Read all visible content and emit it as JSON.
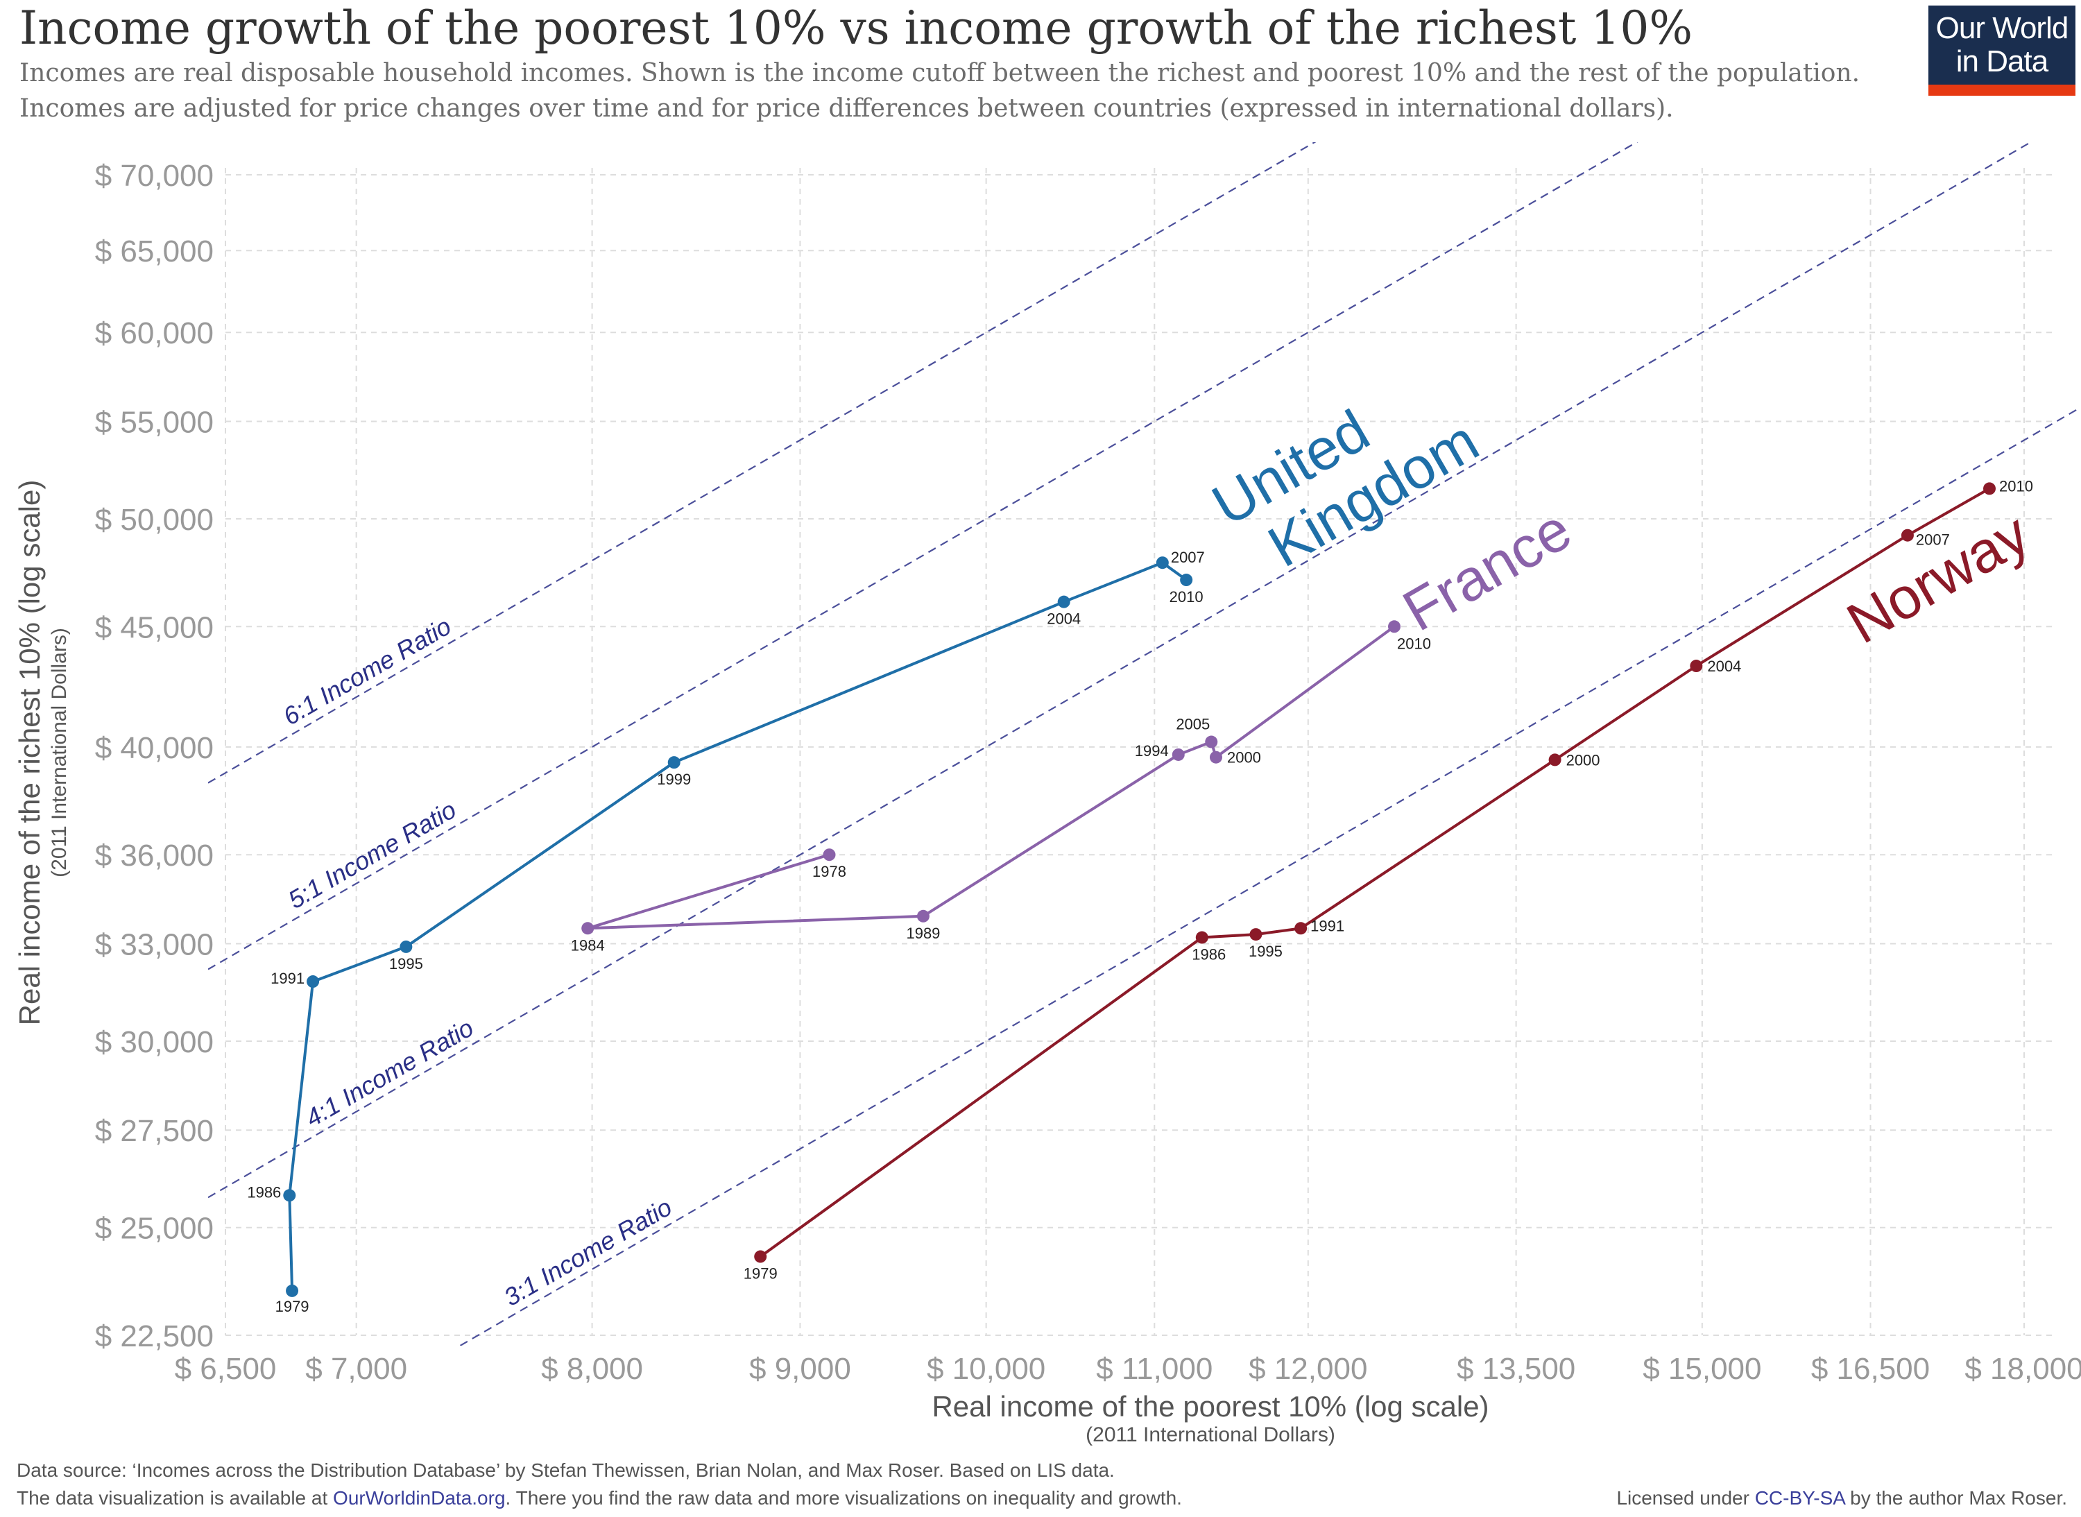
{
  "title": "Income growth of the poorest 10% vs income growth of the richest 10%",
  "subtitle": [
    "Incomes are real disposable household incomes. Shown is the income cutoff between the richest and poorest 10% and the rest of the population.",
    "Incomes are adjusted for price changes over time and for price differences between countries (expressed in international dollars)."
  ],
  "logo": {
    "line1": "Our World",
    "line2": "in Data",
    "colors": {
      "background": "#1a2e4f",
      "accent": "#e63912"
    }
  },
  "footer": {
    "source": "Data source: ‘Incomes across the Distribution Database’ by Stefan Thewissen, Brian Nolan, and Max Roser. Based on LIS data.",
    "availability_prefix": "The data visualization is available at ",
    "availability_link": "OurWorldinData.org",
    "availability_suffix": ". There you find the raw data and more visualizations on inequality and growth.",
    "license_prefix": "Licensed under ",
    "license_link": "CC-BY-SA",
    "license_suffix": " by the author Max Roser."
  },
  "chart_data": {
    "type": "scatter",
    "xlabel": "Real income of the poorest 10% (log scale)",
    "xlabel_sub": "(2011 International Dollars)",
    "ylabel": "Real income of the richest 10% (log scale)",
    "ylabel_sub": "(2011 International Dollars)",
    "x_scale": "log",
    "y_scale": "log",
    "xlim": [
      6500,
      18000
    ],
    "ylim": [
      22500,
      70000
    ],
    "x_ticks": [
      6500,
      7000,
      8000,
      9000,
      10000,
      11000,
      12000,
      13500,
      15000,
      16500,
      18000
    ],
    "x_tick_labels": [
      "$ 6,500",
      "$ 7,000",
      "$ 8,000",
      "$ 9,000",
      "$ 10,000",
      "$ 11,000",
      "$ 12,000",
      "$ 13,500",
      "$ 15,000",
      "$ 16,500",
      "$ 18,000"
    ],
    "y_ticks": [
      22500,
      25000,
      27500,
      30000,
      33000,
      36000,
      40000,
      45000,
      50000,
      55000,
      60000,
      65000,
      70000
    ],
    "y_tick_labels": [
      "$ 22,500",
      "$ 25,000",
      "$ 27,500",
      "$ 30,000",
      "$ 33,000",
      "$ 36,000",
      "$ 40,000",
      "$ 45,000",
      "$ 50,000",
      "$ 55,000",
      "$ 60,000",
      "$ 65,000",
      "$ 70,000"
    ],
    "grid": true,
    "ratio_lines": [
      {
        "ratio": 6,
        "label": "6:1 Income Ratio"
      },
      {
        "ratio": 5,
        "label": "5:1 Income Ratio"
      },
      {
        "ratio": 4,
        "label": "4:1 Income Ratio"
      },
      {
        "ratio": 3,
        "label": "3:1 Income Ratio"
      }
    ],
    "series": [
      {
        "name": "United Kingdom",
        "label_lines": [
          "United",
          "Kingdom"
        ],
        "color": "#1f6fa8",
        "points": [
          {
            "year": "1979",
            "x": 6750,
            "y": 23500
          },
          {
            "year": "1986",
            "x": 6740,
            "y": 25800
          },
          {
            "year": "1991",
            "x": 6830,
            "y": 31800
          },
          {
            "year": "1995",
            "x": 7200,
            "y": 32900
          },
          {
            "year": "1999",
            "x": 8380,
            "y": 39400
          },
          {
            "year": "2004",
            "x": 10450,
            "y": 46100
          },
          {
            "year": "2007",
            "x": 11050,
            "y": 47900
          },
          {
            "year": "2010",
            "x": 11200,
            "y": 47100
          }
        ]
      },
      {
        "name": "France",
        "label_lines": [
          "France"
        ],
        "color": "#8a62a9",
        "points": [
          {
            "year": "1978",
            "x": 9150,
            "y": 36000
          },
          {
            "year": "1984",
            "x": 7980,
            "y": 33500
          },
          {
            "year": "1989",
            "x": 9650,
            "y": 33900
          },
          {
            "year": "1994",
            "x": 11150,
            "y": 39700
          },
          {
            "year": "2005",
            "x": 11360,
            "y": 40200
          },
          {
            "year": "2000",
            "x": 11390,
            "y": 39600
          },
          {
            "year": "2010",
            "x": 12600,
            "y": 45000
          }
        ]
      },
      {
        "name": "Norway",
        "label_lines": [
          "Norway"
        ],
        "color": "#8b1a28",
        "points": [
          {
            "year": "1979",
            "x": 8800,
            "y": 24300
          },
          {
            "year": "1986",
            "x": 11300,
            "y": 33200
          },
          {
            "year": "1995",
            "x": 11650,
            "y": 33300
          },
          {
            "year": "1991",
            "x": 11950,
            "y": 33500
          },
          {
            "year": "2000",
            "x": 13800,
            "y": 39500
          },
          {
            "year": "2004",
            "x": 14950,
            "y": 43300
          },
          {
            "year": "2007",
            "x": 16850,
            "y": 49200
          },
          {
            "year": "2010",
            "x": 17650,
            "y": 51500
          }
        ]
      }
    ]
  }
}
